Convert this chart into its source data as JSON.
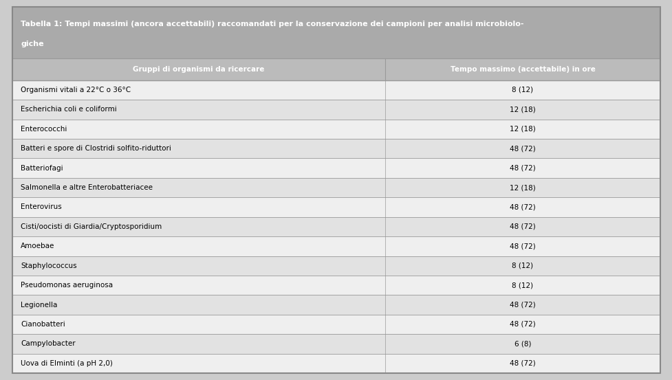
{
  "title_line1": "Tabella 1: Tempi massimi (ancora accettabili) raccomandati per la conservazione dei campioni per analisi microbiolo-",
  "title_line2": "giche",
  "col1_header": "Gruppi di organismi da ricercare",
  "col2_header": "Tempo massimo (accettabile) in ore",
  "rows": [
    [
      "Organismi vitali a 22°C o 36°C",
      "8 (12)"
    ],
    [
      "Escherichia coli e coliformi",
      "12 (18)"
    ],
    [
      "Enterococchi",
      "12 (18)"
    ],
    [
      "Batteri e spore di Clostridi solfito-riduttori",
      "48 (72)"
    ],
    [
      "Batteriofagi",
      "48 (72)"
    ],
    [
      "Salmonella e altre Enterobatteriacee",
      "12 (18)"
    ],
    [
      "Enterovirus",
      "48 (72)"
    ],
    [
      "Cisti/oocisti di Giardia/Cryptosporidium",
      "48 (72)"
    ],
    [
      "Amoebae",
      "48 (72)"
    ],
    [
      "Staphylococcus",
      "8 (12)"
    ],
    [
      "Pseudomonas aeruginosa",
      "8 (12)"
    ],
    [
      "Legionella",
      "48 (72)"
    ],
    [
      "Cianobatteri",
      "48 (72)"
    ],
    [
      "Campylobacter",
      "6 (8)"
    ],
    [
      "Uova di Elminti (a pH 2,0)",
      "48 (72)"
    ]
  ],
  "title_bg": "#aaaaaa",
  "header_bg": "#bbbbbb",
  "row_bg_odd": "#efefef",
  "row_bg_even": "#e2e2e2",
  "title_color": "#ffffff",
  "header_color": "#ffffff",
  "row_text_color": "#000000",
  "border_color": "#999999",
  "fig_bg": "#cccccc",
  "col1_split": 0.575,
  "outer_border_color": "#888888"
}
